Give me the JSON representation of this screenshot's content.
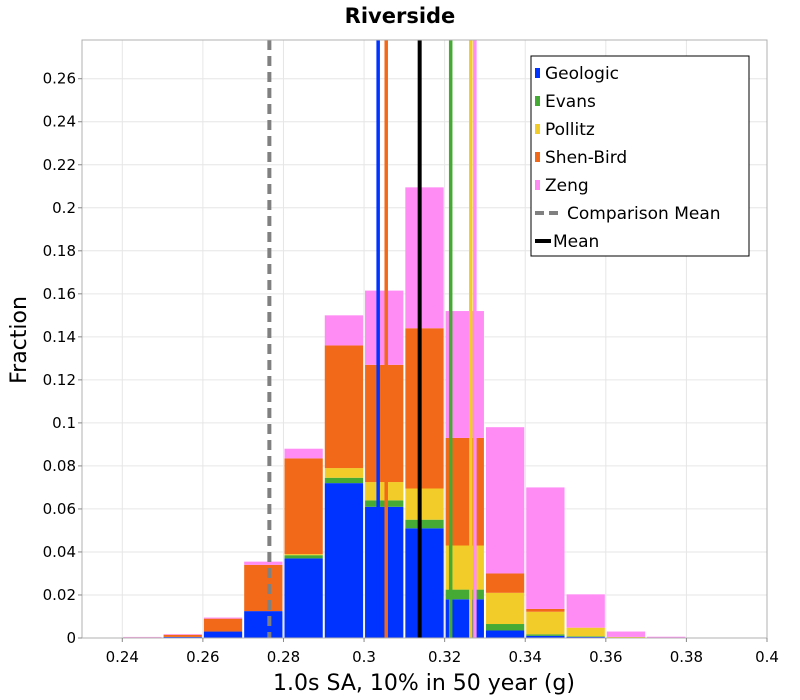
{
  "chart_data": {
    "type": "bar",
    "stacked": true,
    "title": "Riverside",
    "xlabel": "1.0s SA, 10% in 50 year (g)",
    "ylabel": "Fraction",
    "xlim": [
      0.23,
      0.4
    ],
    "ylim": [
      0,
      0.278
    ],
    "xticks": [
      "0.24",
      "0.26",
      "0.28",
      "0.3",
      "0.32",
      "0.34",
      "0.36",
      "0.38",
      "0.4"
    ],
    "yticks": [
      "0",
      "0.02",
      "0.04",
      "0.06",
      "0.08",
      "0.1",
      "0.12",
      "0.14",
      "0.16",
      "0.18",
      "0.2",
      "0.22",
      "0.24",
      "0.26"
    ],
    "bin_width": 0.01,
    "bin_starts": [
      0.24,
      0.25,
      0.26,
      0.27,
      0.28,
      0.29,
      0.3,
      0.31,
      0.32,
      0.33,
      0.34,
      0.35,
      0.36,
      0.37,
      0.38,
      0.39
    ],
    "series": [
      {
        "name": "Geologic",
        "color": "#0033ff",
        "values": [
          0,
          0.0005,
          0.003,
          0.0125,
          0.037,
          0.072,
          0.061,
          0.051,
          0.018,
          0.0035,
          0.001,
          0.0005,
          0,
          0,
          0,
          0
        ]
      },
      {
        "name": "Evans",
        "color": "#44aa33",
        "values": [
          0,
          0,
          0,
          0,
          0.0015,
          0.0025,
          0.003,
          0.004,
          0.0045,
          0.003,
          0.0007,
          0.0003,
          0,
          0,
          0,
          0
        ]
      },
      {
        "name": "Pollitz",
        "color": "#f2cc28",
        "values": [
          0,
          0,
          0,
          0,
          0.0005,
          0.0045,
          0.0085,
          0.0145,
          0.0205,
          0.0145,
          0.0105,
          0.004,
          0.0005,
          0,
          0,
          0
        ]
      },
      {
        "name": "Shen-Bird",
        "color": "#f26a19",
        "values": [
          0.0003,
          0.001,
          0.006,
          0.0215,
          0.0445,
          0.057,
          0.0545,
          0.0745,
          0.05,
          0.009,
          0.0013,
          0,
          0,
          0,
          0,
          0
        ]
      },
      {
        "name": "Zeng",
        "color": "#ff8cf5",
        "values": [
          0.0002,
          0.0003,
          0.0005,
          0.0015,
          0.0045,
          0.014,
          0.0345,
          0.0655,
          0.059,
          0.068,
          0.0565,
          0.0155,
          0.0025,
          0.0006,
          0.0002,
          0.0001
        ]
      }
    ],
    "vlines": [
      {
        "name": "Geologic",
        "x": 0.3035,
        "color": "#0033ff",
        "style": "solid"
      },
      {
        "name": "Shen-Bird",
        "x": 0.3055,
        "color": "#f26a19",
        "style": "solid"
      },
      {
        "name": "Evans",
        "x": 0.3215,
        "color": "#44aa33",
        "style": "solid"
      },
      {
        "name": "Pollitz",
        "x": 0.3265,
        "color": "#f2cc28",
        "style": "solid"
      },
      {
        "name": "Zeng",
        "x": 0.3275,
        "color": "#ff8cf5",
        "style": "solid"
      },
      {
        "name": "Comparison Mean",
        "x": 0.2765,
        "color": "#808080",
        "style": "dashed"
      },
      {
        "name": "Mean",
        "x": 0.3138,
        "color": "#000000",
        "style": "solid"
      }
    ],
    "legend": {
      "position": "top-right",
      "entries": [
        {
          "label": "Geologic",
          "color": "#0033ff",
          "kind": "box"
        },
        {
          "label": "Evans",
          "color": "#44aa33",
          "kind": "box"
        },
        {
          "label": "Pollitz",
          "color": "#f2cc28",
          "kind": "box"
        },
        {
          "label": "Shen-Bird",
          "color": "#f26a19",
          "kind": "box"
        },
        {
          "label": "Zeng",
          "color": "#ff8cf5",
          "kind": "box"
        },
        {
          "label": "Comparison Mean",
          "color": "#808080",
          "kind": "dash"
        },
        {
          "label": "Mean",
          "color": "#000000",
          "kind": "line"
        }
      ]
    },
    "grid": true
  }
}
